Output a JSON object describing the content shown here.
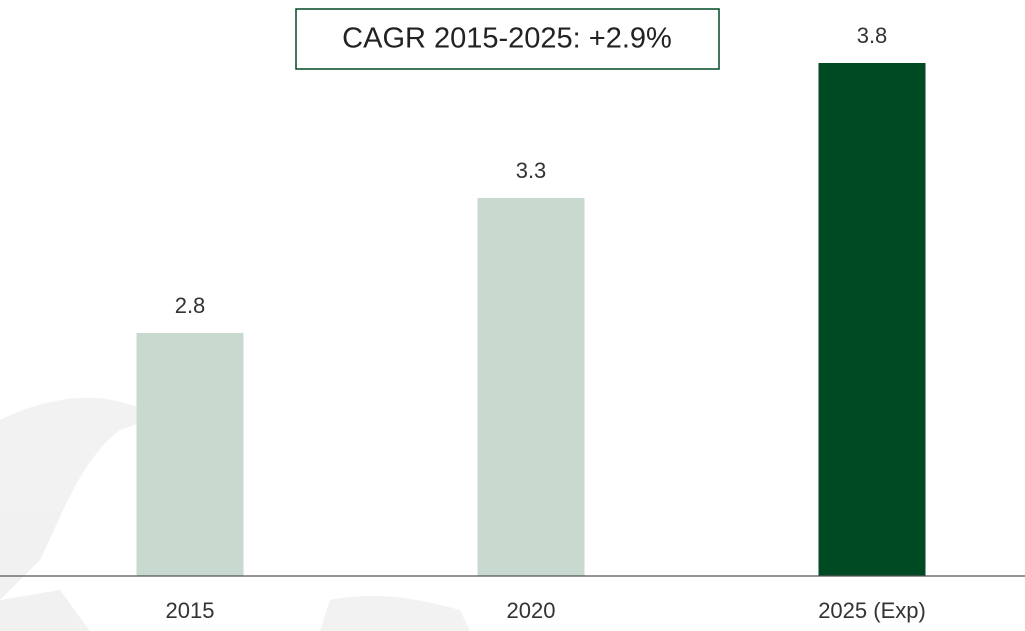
{
  "chart_data": {
    "type": "bar",
    "categories": [
      "2015",
      "2020",
      "2025 (Exp)"
    ],
    "values": [
      2.8,
      3.3,
      3.8
    ],
    "colors": [
      "#c8d9d0",
      "#c8d9d0",
      "#004a23"
    ],
    "ylim": [
      1.9,
      4.0
    ],
    "annotation": "CAGR 2015-2025: +2.9%"
  }
}
